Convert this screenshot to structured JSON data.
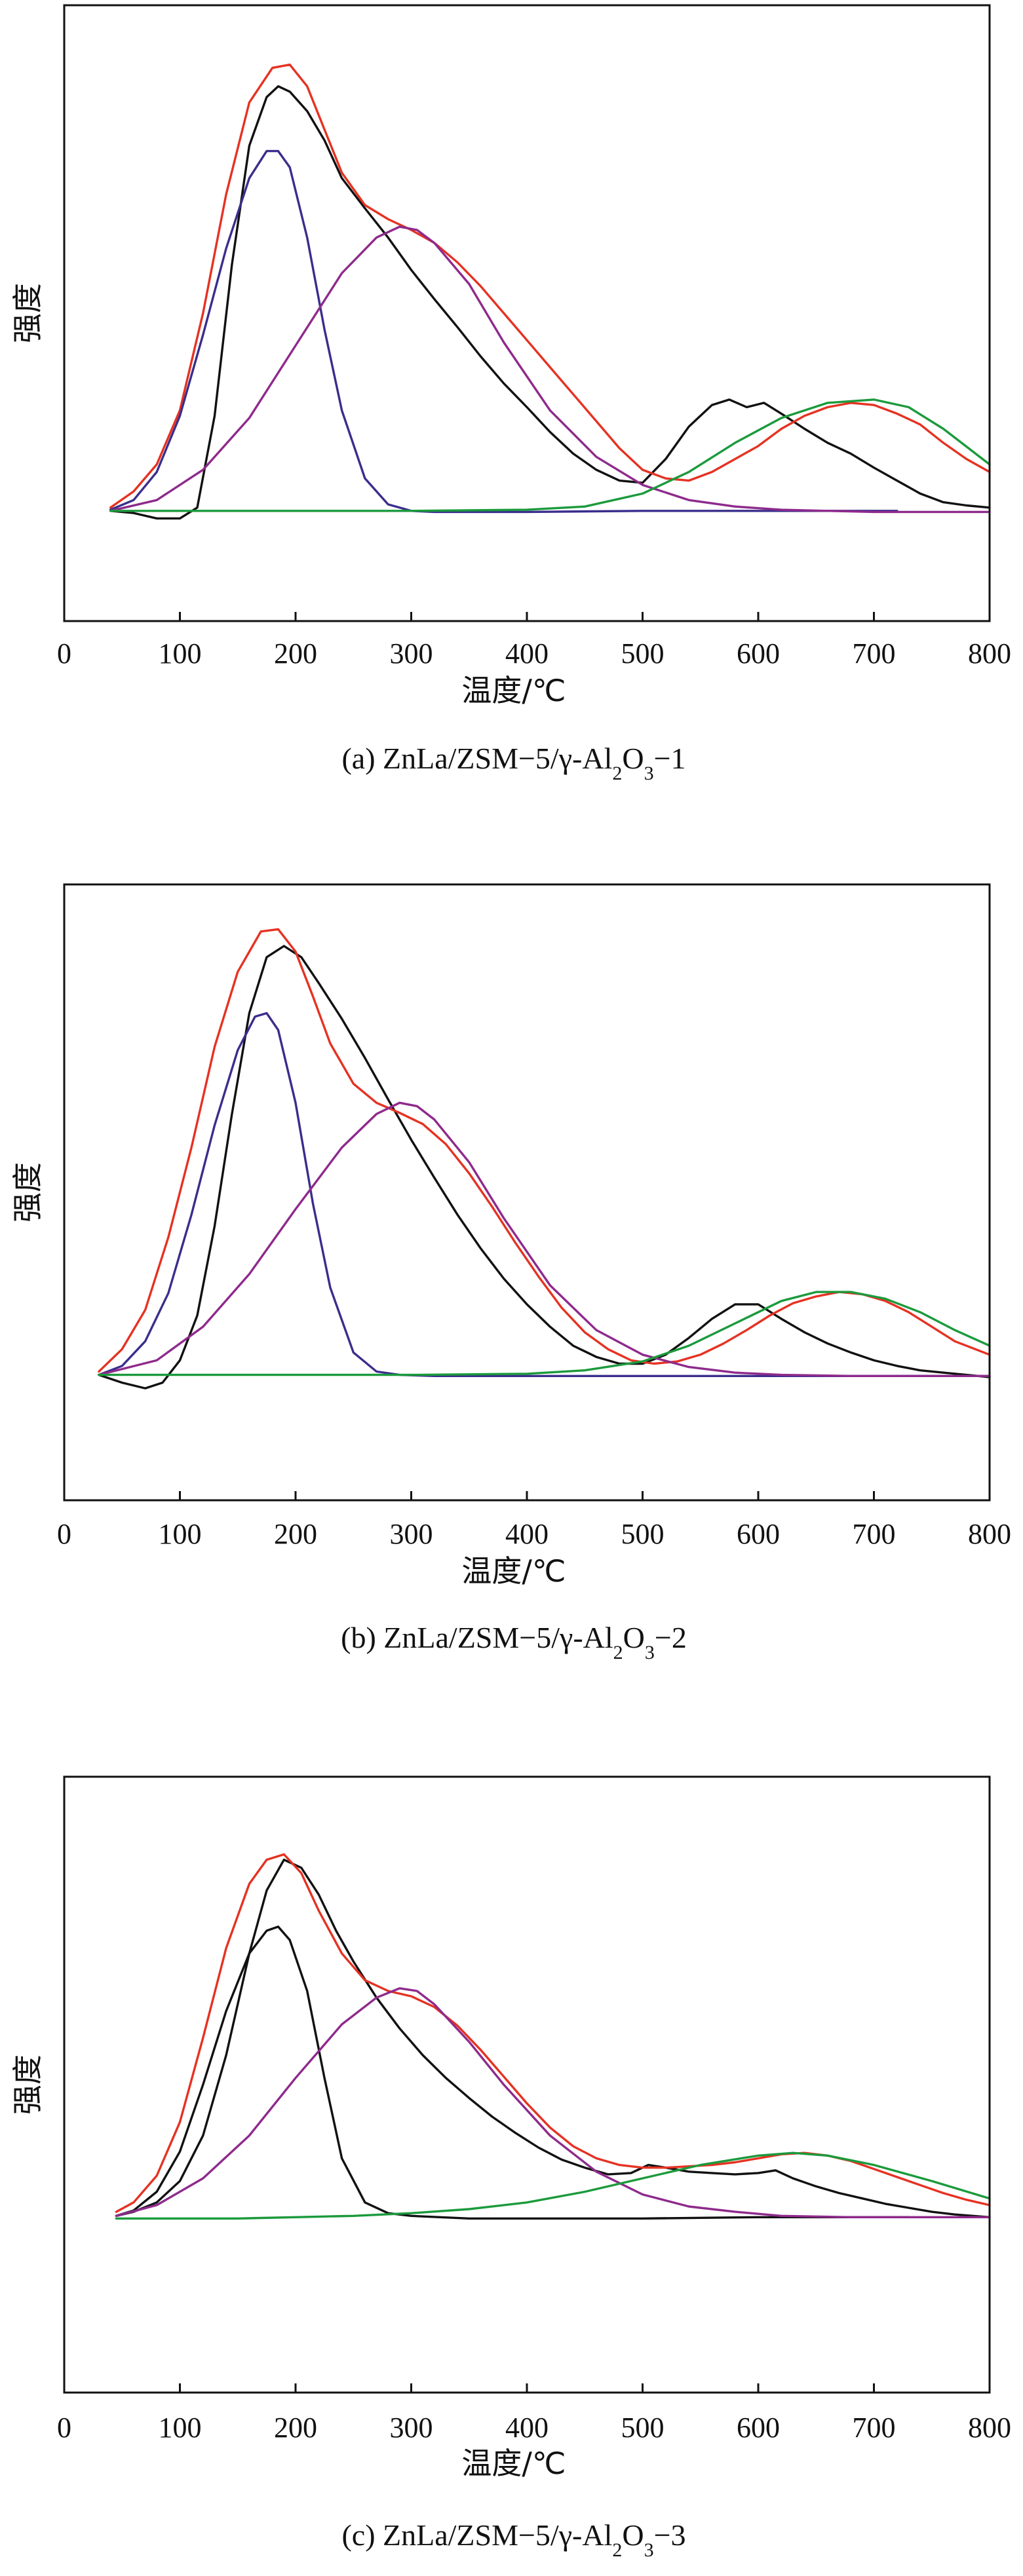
{
  "colors": {
    "measured": "#111111",
    "fit_total": "#e53222",
    "peak_low": "#3a2e8c",
    "peak_mid": "#8e2a8c",
    "peak_high": "#1b9a3c",
    "baseline": "#1b9a3c"
  },
  "chart_data": [
    {
      "type": "line",
      "caption": {
        "prefix": "(a) ZnLa/ZSM−5/γ-Al",
        "sub1": "2",
        "mid": "O",
        "sub2": "3",
        "suffix": "−1"
      },
      "xlabel": "温度/℃",
      "ylabel": "强度",
      "xlim": [
        0,
        800
      ],
      "xticks": [
        "0",
        "100",
        "200",
        "300",
        "400",
        "500",
        "600",
        "700",
        "800"
      ],
      "ylim": [
        -1,
        4.7
      ],
      "grid": false,
      "legend": "none",
      "series": [
        {
          "color_key": "measured",
          "x": [
            40,
            60,
            80,
            100,
            115,
            130,
            145,
            160,
            175,
            185,
            195,
            210,
            225,
            240,
            260,
            280,
            300,
            320,
            340,
            360,
            380,
            400,
            420,
            440,
            460,
            480,
            500,
            520,
            540,
            560,
            575,
            590,
            605,
            620,
            640,
            660,
            680,
            700,
            720,
            740,
            760,
            780,
            800
          ],
          "y": [
            0.02,
            0.0,
            -0.05,
            -0.05,
            0.05,
            0.9,
            2.3,
            3.4,
            3.85,
            3.95,
            3.9,
            3.72,
            3.45,
            3.1,
            2.82,
            2.55,
            2.25,
            1.98,
            1.72,
            1.45,
            1.2,
            0.98,
            0.75,
            0.55,
            0.4,
            0.3,
            0.28,
            0.5,
            0.8,
            1.0,
            1.05,
            0.98,
            1.02,
            0.92,
            0.78,
            0.65,
            0.55,
            0.42,
            0.3,
            0.18,
            0.1,
            0.07,
            0.05
          ]
        },
        {
          "color_key": "fit_total",
          "x": [
            40,
            60,
            80,
            100,
            120,
            140,
            160,
            180,
            195,
            210,
            225,
            240,
            260,
            280,
            300,
            320,
            340,
            360,
            380,
            400,
            420,
            440,
            460,
            480,
            500,
            520,
            540,
            560,
            580,
            600,
            620,
            640,
            660,
            680,
            700,
            720,
            740,
            760,
            780,
            800
          ],
          "y": [
            0.05,
            0.2,
            0.45,
            0.95,
            1.85,
            2.95,
            3.8,
            4.12,
            4.15,
            3.95,
            3.55,
            3.15,
            2.85,
            2.72,
            2.62,
            2.5,
            2.32,
            2.1,
            1.85,
            1.6,
            1.35,
            1.1,
            0.85,
            0.6,
            0.4,
            0.32,
            0.3,
            0.38,
            0.5,
            0.62,
            0.78,
            0.9,
            0.98,
            1.02,
            1.0,
            0.92,
            0.82,
            0.65,
            0.5,
            0.38
          ]
        },
        {
          "color_key": "peak_low",
          "x": [
            40,
            60,
            80,
            100,
            120,
            140,
            160,
            175,
            185,
            195,
            210,
            225,
            240,
            260,
            280,
            300,
            320,
            350,
            400,
            500,
            600,
            700,
            720
          ],
          "y": [
            0.03,
            0.12,
            0.38,
            0.9,
            1.65,
            2.45,
            3.1,
            3.35,
            3.35,
            3.2,
            2.55,
            1.7,
            0.95,
            0.32,
            0.08,
            0.02,
            0.01,
            0.01,
            0.01,
            0.02,
            0.02,
            0.02,
            0.02
          ]
        },
        {
          "color_key": "peak_mid",
          "x": [
            40,
            80,
            120,
            160,
            200,
            240,
            270,
            290,
            305,
            320,
            350,
            380,
            420,
            460,
            500,
            540,
            580,
            620,
            660,
            700,
            750,
            800
          ],
          "y": [
            0.02,
            0.12,
            0.4,
            0.88,
            1.55,
            2.22,
            2.55,
            2.65,
            2.62,
            2.5,
            2.12,
            1.58,
            0.95,
            0.52,
            0.26,
            0.12,
            0.06,
            0.03,
            0.02,
            0.01,
            0.01,
            0.01
          ]
        },
        {
          "color_key": "peak_high",
          "x": [
            40,
            200,
            300,
            400,
            450,
            500,
            540,
            580,
            620,
            660,
            700,
            730,
            760,
            800
          ],
          "y": [
            0.02,
            0.02,
            0.02,
            0.03,
            0.06,
            0.18,
            0.38,
            0.65,
            0.88,
            1.02,
            1.05,
            0.98,
            0.78,
            0.45
          ]
        }
      ]
    },
    {
      "type": "line",
      "caption": {
        "prefix": "(b) ZnLa/ZSM−5/γ-Al",
        "sub1": "2",
        "mid": "O",
        "sub2": "3",
        "suffix": "−2"
      },
      "xlabel": "温度/℃",
      "ylabel": "强度",
      "xlim": [
        0,
        800
      ],
      "xticks": [
        "0",
        "100",
        "200",
        "300",
        "400",
        "500",
        "600",
        "700",
        "800"
      ],
      "ylim": [
        -1.1,
        4.4
      ],
      "grid": false,
      "legend": "none",
      "series": [
        {
          "color_key": "measured",
          "x": [
            30,
            50,
            70,
            85,
            100,
            115,
            130,
            145,
            160,
            175,
            190,
            205,
            220,
            240,
            260,
            280,
            300,
            320,
            340,
            360,
            380,
            400,
            420,
            440,
            460,
            480,
            500,
            520,
            540,
            560,
            580,
            600,
            620,
            640,
            660,
            680,
            700,
            720,
            740,
            760,
            780,
            800
          ],
          "y": [
            0.02,
            -0.05,
            -0.1,
            -0.05,
            0.15,
            0.55,
            1.35,
            2.35,
            3.25,
            3.75,
            3.85,
            3.75,
            3.52,
            3.2,
            2.85,
            2.48,
            2.12,
            1.78,
            1.45,
            1.15,
            0.88,
            0.65,
            0.45,
            0.28,
            0.18,
            0.12,
            0.12,
            0.2,
            0.35,
            0.52,
            0.65,
            0.65,
            0.52,
            0.4,
            0.3,
            0.22,
            0.15,
            0.1,
            0.06,
            0.04,
            0.02,
            0.0
          ]
        },
        {
          "color_key": "fit_total",
          "x": [
            30,
            50,
            70,
            90,
            110,
            130,
            150,
            170,
            185,
            200,
            215,
            230,
            250,
            270,
            290,
            310,
            330,
            350,
            370,
            390,
            410,
            430,
            450,
            470,
            490,
            510,
            530,
            550,
            570,
            590,
            610,
            630,
            650,
            670,
            690,
            710,
            730,
            750,
            770,
            800
          ],
          "y": [
            0.05,
            0.25,
            0.6,
            1.25,
            2.05,
            2.95,
            3.62,
            3.98,
            4.0,
            3.8,
            3.4,
            2.98,
            2.62,
            2.45,
            2.36,
            2.26,
            2.08,
            1.82,
            1.52,
            1.2,
            0.9,
            0.62,
            0.4,
            0.25,
            0.15,
            0.12,
            0.14,
            0.2,
            0.3,
            0.42,
            0.55,
            0.66,
            0.72,
            0.76,
            0.74,
            0.68,
            0.58,
            0.45,
            0.32,
            0.2
          ]
        },
        {
          "color_key": "peak_low",
          "x": [
            30,
            50,
            70,
            90,
            110,
            130,
            150,
            165,
            175,
            185,
            200,
            215,
            230,
            250,
            270,
            290,
            320,
            400,
            500,
            600,
            700,
            800
          ],
          "y": [
            0.02,
            0.1,
            0.32,
            0.75,
            1.45,
            2.25,
            2.92,
            3.22,
            3.25,
            3.1,
            2.45,
            1.55,
            0.8,
            0.22,
            0.05,
            0.02,
            0.01,
            0.01,
            0.01,
            0.01,
            0.01,
            0.01
          ]
        },
        {
          "color_key": "peak_mid",
          "x": [
            30,
            80,
            120,
            160,
            200,
            240,
            270,
            290,
            305,
            320,
            350,
            380,
            420,
            460,
            500,
            540,
            580,
            620,
            680,
            740,
            800
          ],
          "y": [
            0.02,
            0.15,
            0.45,
            0.92,
            1.5,
            2.05,
            2.35,
            2.45,
            2.42,
            2.3,
            1.92,
            1.42,
            0.82,
            0.42,
            0.2,
            0.09,
            0.04,
            0.02,
            0.01,
            0.01,
            0.01
          ]
        },
        {
          "color_key": "peak_high",
          "x": [
            30,
            200,
            300,
            400,
            450,
            500,
            540,
            580,
            620,
            650,
            680,
            710,
            740,
            770,
            800
          ],
          "y": [
            0.02,
            0.02,
            0.02,
            0.03,
            0.06,
            0.14,
            0.28,
            0.48,
            0.68,
            0.76,
            0.76,
            0.7,
            0.58,
            0.42,
            0.28
          ]
        }
      ]
    },
    {
      "type": "line",
      "caption": {
        "prefix": "(c) ZnLa/ZSM−5/γ-Al",
        "sub1": "2",
        "mid": "O",
        "sub2": "3",
        "suffix": "−3"
      },
      "xlabel": "温度/℃",
      "ylabel": "强度",
      "xlim": [
        0,
        800
      ],
      "xticks": [
        "0",
        "100",
        "200",
        "300",
        "400",
        "500",
        "600",
        "700",
        "800"
      ],
      "ylim": [
        -1.3,
        3.3
      ],
      "grid": false,
      "legend": "none",
      "series": [
        {
          "color_key": "measured",
          "x": [
            45,
            60,
            80,
            100,
            120,
            140,
            160,
            175,
            190,
            205,
            220,
            235,
            250,
            270,
            290,
            310,
            330,
            350,
            370,
            390,
            410,
            430,
            450,
            470,
            490,
            505,
            520,
            540,
            560,
            580,
            600,
            615,
            630,
            650,
            670,
            690,
            710,
            730,
            750,
            770,
            800
          ],
          "y": [
            0.02,
            0.05,
            0.12,
            0.28,
            0.62,
            1.22,
            1.98,
            2.45,
            2.68,
            2.62,
            2.42,
            2.15,
            1.92,
            1.65,
            1.42,
            1.22,
            1.05,
            0.9,
            0.76,
            0.64,
            0.53,
            0.44,
            0.38,
            0.33,
            0.34,
            0.4,
            0.38,
            0.35,
            0.34,
            0.33,
            0.34,
            0.36,
            0.3,
            0.24,
            0.19,
            0.15,
            0.11,
            0.08,
            0.05,
            0.03,
            0.01
          ]
        },
        {
          "color_key": "fit_total",
          "x": [
            45,
            60,
            80,
            100,
            120,
            140,
            160,
            175,
            190,
            205,
            220,
            240,
            260,
            280,
            300,
            320,
            340,
            360,
            380,
            400,
            420,
            440,
            460,
            480,
            500,
            520,
            540,
            560,
            580,
            600,
            620,
            640,
            660,
            680,
            700,
            720,
            740,
            760,
            780,
            800
          ],
          "y": [
            0.05,
            0.12,
            0.32,
            0.72,
            1.35,
            2.02,
            2.5,
            2.68,
            2.72,
            2.58,
            2.3,
            1.98,
            1.78,
            1.7,
            1.66,
            1.58,
            1.44,
            1.26,
            1.06,
            0.86,
            0.68,
            0.54,
            0.45,
            0.4,
            0.38,
            0.38,
            0.39,
            0.4,
            0.42,
            0.45,
            0.48,
            0.49,
            0.47,
            0.43,
            0.37,
            0.31,
            0.25,
            0.19,
            0.14,
            0.1
          ]
        },
        {
          "color_key": "measured",
          "x": [
            45,
            60,
            80,
            100,
            120,
            140,
            160,
            175,
            185,
            195,
            210,
            225,
            240,
            260,
            280,
            300,
            350,
            400,
            500,
            600,
            700,
            730
          ],
          "y": [
            0.02,
            0.06,
            0.2,
            0.5,
            1.0,
            1.55,
            1.98,
            2.15,
            2.18,
            2.08,
            1.7,
            1.05,
            0.45,
            0.12,
            0.04,
            0.02,
            0.0,
            0.0,
            0.0,
            0.01,
            0.01,
            0.01
          ]
        },
        {
          "color_key": "peak_mid",
          "x": [
            45,
            80,
            120,
            160,
            200,
            240,
            270,
            290,
            305,
            320,
            350,
            380,
            420,
            460,
            500,
            540,
            580,
            620,
            680,
            740,
            800
          ],
          "y": [
            0.02,
            0.1,
            0.3,
            0.62,
            1.05,
            1.45,
            1.65,
            1.72,
            1.7,
            1.6,
            1.32,
            1.0,
            0.62,
            0.35,
            0.18,
            0.09,
            0.05,
            0.02,
            0.01,
            0.01,
            0.01
          ]
        },
        {
          "color_key": "peak_high",
          "x": [
            45,
            100,
            150,
            200,
            250,
            300,
            350,
            400,
            450,
            500,
            550,
            600,
            630,
            660,
            700,
            750,
            800
          ],
          "y": [
            0.0,
            0.0,
            0.0,
            0.01,
            0.02,
            0.04,
            0.07,
            0.12,
            0.2,
            0.3,
            0.4,
            0.47,
            0.49,
            0.47,
            0.4,
            0.28,
            0.15
          ]
        }
      ]
    }
  ]
}
